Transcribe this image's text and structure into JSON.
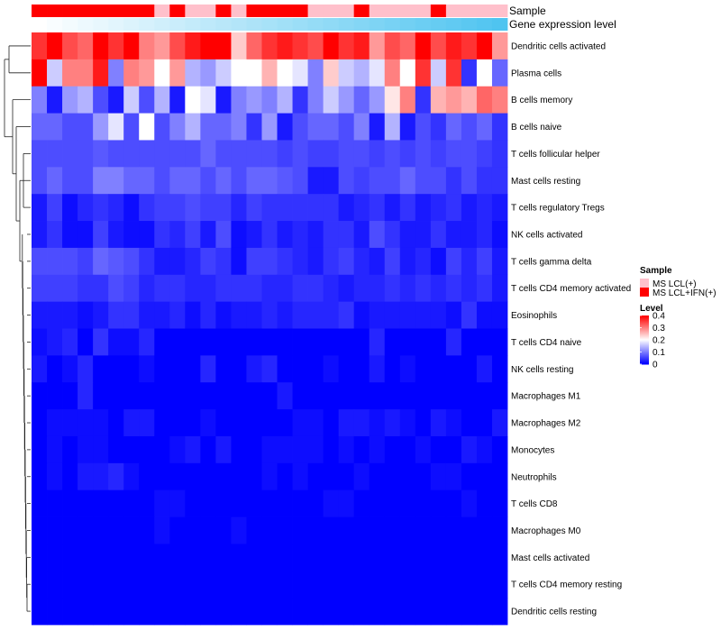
{
  "chart_data": {
    "type": "heatmap",
    "annotation_labels": {
      "sample": "Sample",
      "expression": "Gene expression level"
    },
    "sample_groups": [
      "MS LCL(+)",
      "MS LCL+IFN(+)"
    ],
    "sample_colors": {
      "MS LCL(+)": "#ffc0cb",
      "MS LCL+IFN(+)": "#ff0000"
    },
    "sample_row": [
      "MS LCL+IFN(+)",
      "MS LCL+IFN(+)",
      "MS LCL+IFN(+)",
      "MS LCL+IFN(+)",
      "MS LCL+IFN(+)",
      "MS LCL+IFN(+)",
      "MS LCL+IFN(+)",
      "MS LCL+IFN(+)",
      "MS LCL(+)",
      "MS LCL+IFN(+)",
      "MS LCL(+)",
      "MS LCL(+)",
      "MS LCL+IFN(+)",
      "MS LCL(+)",
      "MS LCL+IFN(+)",
      "MS LCL+IFN(+)",
      "MS LCL+IFN(+)",
      "MS LCL+IFN(+)",
      "MS LCL(+)",
      "MS LCL(+)",
      "MS LCL(+)",
      "MS LCL+IFN(+)",
      "MS LCL(+)",
      "MS LCL(+)",
      "MS LCL(+)",
      "MS LCL(+)",
      "MS LCL+IFN(+)",
      "MS LCL(+)",
      "MS LCL(+)",
      "MS LCL(+)",
      "MS LCL(+)"
    ],
    "expression_gradient": [
      "#ffffff",
      "#4fc4f0"
    ],
    "rows": [
      "Dendritic cells activated",
      "Plasma cells",
      "B cells memory",
      "B cells naive",
      "T cells follicular helper",
      "Mast cells resting",
      "T cells regulatory  Tregs",
      "NK cells activated",
      "T cells gamma delta",
      "T cells CD4 memory activated",
      "Eosinophils",
      "T cells CD4 naive",
      "NK cells resting",
      "Macrophages M1",
      "Macrophages M2",
      "Monocytes",
      "Neutrophils",
      "T cells CD8",
      "Macrophages M0",
      "Mast cells activated",
      "T cells CD4 memory resting",
      "Dendritic cells resting"
    ],
    "values": [
      [
        0.36,
        0.4,
        0.34,
        0.32,
        0.4,
        0.36,
        0.4,
        0.3,
        0.28,
        0.34,
        0.38,
        0.4,
        0.4,
        0.24,
        0.32,
        0.36,
        0.38,
        0.36,
        0.34,
        0.4,
        0.36,
        0.38,
        0.28,
        0.34,
        0.32,
        0.4,
        0.34,
        0.38,
        0.36,
        0.4,
        0.28
      ],
      [
        0.4,
        0.16,
        0.3,
        0.3,
        0.38,
        0.1,
        0.3,
        0.28,
        0.2,
        0.28,
        0.14,
        0.12,
        0.16,
        0.2,
        0.2,
        0.26,
        0.2,
        0.18,
        0.1,
        0.24,
        0.16,
        0.14,
        0.18,
        0.3,
        0.2,
        0.36,
        0.16,
        0.36,
        0.04,
        0.2,
        0.08
      ],
      [
        0.1,
        0.02,
        0.12,
        0.14,
        0.06,
        0.02,
        0.16,
        0.06,
        0.14,
        0.02,
        0.2,
        0.18,
        0.02,
        0.1,
        0.12,
        0.1,
        0.14,
        0.04,
        0.1,
        0.16,
        0.12,
        0.08,
        0.12,
        0.22,
        0.3,
        0.04,
        0.26,
        0.28,
        0.26,
        0.32,
        0.3
      ],
      [
        0.08,
        0.08,
        0.06,
        0.06,
        0.12,
        0.18,
        0.06,
        0.2,
        0.06,
        0.1,
        0.14,
        0.08,
        0.08,
        0.1,
        0.04,
        0.12,
        0.02,
        0.06,
        0.08,
        0.08,
        0.06,
        0.1,
        0.02,
        0.14,
        0.02,
        0.06,
        0.04,
        0.08,
        0.06,
        0.08,
        0.04
      ],
      [
        0.06,
        0.06,
        0.06,
        0.06,
        0.07,
        0.06,
        0.06,
        0.06,
        0.06,
        0.06,
        0.06,
        0.08,
        0.06,
        0.06,
        0.06,
        0.06,
        0.05,
        0.06,
        0.05,
        0.05,
        0.06,
        0.06,
        0.05,
        0.06,
        0.05,
        0.06,
        0.05,
        0.06,
        0.06,
        0.05,
        0.04
      ],
      [
        0.06,
        0.08,
        0.06,
        0.06,
        0.1,
        0.1,
        0.08,
        0.08,
        0.06,
        0.08,
        0.08,
        0.06,
        0.08,
        0.06,
        0.08,
        0.08,
        0.07,
        0.06,
        0.02,
        0.02,
        0.06,
        0.05,
        0.06,
        0.06,
        0.08,
        0.06,
        0.06,
        0.04,
        0.06,
        0.04,
        0.04
      ],
      [
        0.02,
        0.05,
        0.01,
        0.03,
        0.04,
        0.03,
        0.01,
        0.04,
        0.05,
        0.05,
        0.06,
        0.05,
        0.05,
        0.03,
        0.05,
        0.04,
        0.04,
        0.04,
        0.04,
        0.04,
        0.02,
        0.03,
        0.04,
        0.02,
        0.04,
        0.02,
        0.03,
        0.04,
        0.02,
        0.03,
        0.02
      ],
      [
        0.02,
        0.04,
        0.01,
        0.01,
        0.05,
        0.02,
        0.01,
        0.01,
        0.04,
        0.03,
        0.05,
        0.02,
        0.06,
        0.01,
        0.02,
        0.04,
        0.02,
        0.03,
        0.02,
        0.04,
        0.04,
        0.02,
        0.06,
        0.04,
        0.02,
        0.02,
        0.04,
        0.02,
        0.02,
        0.03,
        0.01
      ],
      [
        0.06,
        0.06,
        0.06,
        0.05,
        0.08,
        0.07,
        0.06,
        0.04,
        0.02,
        0.02,
        0.03,
        0.05,
        0.04,
        0.01,
        0.05,
        0.05,
        0.04,
        0.03,
        0.02,
        0.04,
        0.05,
        0.03,
        0.02,
        0.05,
        0.02,
        0.03,
        0.01,
        0.05,
        0.03,
        0.05,
        0.02
      ],
      [
        0.05,
        0.05,
        0.05,
        0.04,
        0.04,
        0.06,
        0.05,
        0.03,
        0.04,
        0.04,
        0.03,
        0.03,
        0.04,
        0.04,
        0.04,
        0.03,
        0.03,
        0.04,
        0.04,
        0.03,
        0.02,
        0.03,
        0.03,
        0.04,
        0.03,
        0.04,
        0.03,
        0.04,
        0.03,
        0.04,
        0.02
      ],
      [
        0.02,
        0.02,
        0.02,
        0.01,
        0.02,
        0.04,
        0.04,
        0.02,
        0.02,
        0.03,
        0.01,
        0.03,
        0.01,
        0.02,
        0.02,
        0.03,
        0.02,
        0.03,
        0.03,
        0.03,
        0.04,
        0.01,
        0.02,
        0.02,
        0.02,
        0.02,
        0.02,
        0.01,
        0.04,
        0.01,
        0.01
      ],
      [
        0.01,
        0.02,
        0.03,
        0.0,
        0.04,
        0.01,
        0.01,
        0.03,
        0.0,
        0.0,
        0.0,
        0.0,
        0.0,
        0.0,
        0.0,
        0.0,
        0.0,
        0.0,
        0.0,
        0.0,
        0.0,
        0.0,
        0.03,
        0.0,
        0.0,
        0.0,
        0.0,
        0.03,
        0.0,
        0.0,
        0.0
      ],
      [
        0.02,
        0.0,
        0.01,
        0.03,
        0.0,
        0.0,
        0.0,
        0.01,
        0.0,
        0.0,
        0.0,
        0.03,
        0.0,
        0.0,
        0.02,
        0.03,
        0.0,
        0.0,
        0.0,
        0.01,
        0.0,
        0.0,
        0.02,
        0.0,
        0.01,
        0.0,
        0.0,
        0.0,
        0.0,
        0.02,
        0.0
      ],
      [
        0.0,
        0.0,
        0.0,
        0.03,
        0.0,
        0.0,
        0.0,
        0.0,
        0.0,
        0.0,
        0.0,
        0.0,
        0.0,
        0.0,
        0.0,
        0.0,
        0.02,
        0.0,
        0.0,
        0.0,
        0.0,
        0.0,
        0.0,
        0.0,
        0.0,
        0.0,
        0.0,
        0.0,
        0.0,
        0.0,
        0.0
      ],
      [
        0.0,
        0.01,
        0.01,
        0.01,
        0.01,
        0.0,
        0.02,
        0.02,
        0.0,
        0.0,
        0.0,
        0.01,
        0.0,
        0.0,
        0.0,
        0.0,
        0.0,
        0.01,
        0.01,
        0.0,
        0.02,
        0.02,
        0.01,
        0.02,
        0.01,
        0.0,
        0.02,
        0.01,
        0.0,
        0.0,
        0.02
      ],
      [
        0.0,
        0.01,
        0.0,
        0.01,
        0.01,
        0.0,
        0.0,
        0.0,
        0.0,
        0.01,
        0.02,
        0.0,
        0.02,
        0.0,
        0.0,
        0.01,
        0.01,
        0.01,
        0.01,
        0.0,
        0.01,
        0.0,
        0.01,
        0.0,
        0.0,
        0.01,
        0.0,
        0.0,
        0.02,
        0.01,
        0.0
      ],
      [
        0.0,
        0.01,
        0.0,
        0.02,
        0.02,
        0.03,
        0.01,
        0.0,
        0.0,
        0.0,
        0.0,
        0.0,
        0.0,
        0.0,
        0.0,
        0.01,
        0.0,
        0.01,
        0.0,
        0.0,
        0.0,
        0.01,
        0.0,
        0.0,
        0.0,
        0.0,
        0.01,
        0.01,
        0.0,
        0.0,
        0.0
      ],
      [
        0.0,
        0.0,
        0.0,
        0.0,
        0.0,
        0.0,
        0.0,
        0.0,
        0.01,
        0.01,
        0.0,
        0.0,
        0.0,
        0.0,
        0.0,
        0.0,
        0.0,
        0.0,
        0.0,
        0.01,
        0.01,
        0.0,
        0.0,
        0.0,
        0.0,
        0.0,
        0.0,
        0.0,
        0.01,
        0.0,
        0.0
      ],
      [
        0.0,
        0.0,
        0.0,
        0.0,
        0.0,
        0.0,
        0.0,
        0.0,
        0.01,
        0.0,
        0.0,
        0.0,
        0.0,
        0.01,
        0.0,
        0.0,
        0.0,
        0.0,
        0.0,
        0.0,
        0.0,
        0.0,
        0.0,
        0.0,
        0.0,
        0.0,
        0.0,
        0.0,
        0.0,
        0.0,
        0.0
      ],
      [
        0.0,
        0.0,
        0.0,
        0.0,
        0.0,
        0.0,
        0.0,
        0.0,
        0.0,
        0.0,
        0.0,
        0.0,
        0.0,
        0.0,
        0.0,
        0.0,
        0.0,
        0.0,
        0.0,
        0.0,
        0.0,
        0.0,
        0.0,
        0.0,
        0.0,
        0.0,
        0.0,
        0.0,
        0.0,
        0.0,
        0.0
      ],
      [
        0.0,
        0.0,
        0.0,
        0.0,
        0.0,
        0.0,
        0.0,
        0.0,
        0.0,
        0.0,
        0.0,
        0.0,
        0.0,
        0.0,
        0.0,
        0.0,
        0.0,
        0.0,
        0.0,
        0.0,
        0.0,
        0.0,
        0.0,
        0.0,
        0.0,
        0.0,
        0.0,
        0.0,
        0.0,
        0.0,
        0.0
      ],
      [
        0.0,
        0.0,
        0.0,
        0.0,
        0.0,
        0.0,
        0.0,
        0.0,
        0.0,
        0.0,
        0.0,
        0.0,
        0.0,
        0.0,
        0.0,
        0.0,
        0.0,
        0.0,
        0.0,
        0.0,
        0.0,
        0.0,
        0.0,
        0.0,
        0.0,
        0.0,
        0.0,
        0.0,
        0.0,
        0.0,
        0.0
      ]
    ],
    "color_scale": {
      "low": "#0000ff",
      "mid": "#ffffff",
      "high": "#ff0000",
      "domain": [
        0,
        0.2,
        0.4
      ]
    },
    "legend": {
      "sample_title": "Sample",
      "level_title": "Level",
      "level_ticks": [
        "0.4",
        "0.3",
        "0.2",
        "0.1",
        "0"
      ],
      "level_tick_values": [
        0.4,
        0.3,
        0.2,
        0.1,
        0
      ],
      "placement": "right"
    }
  }
}
